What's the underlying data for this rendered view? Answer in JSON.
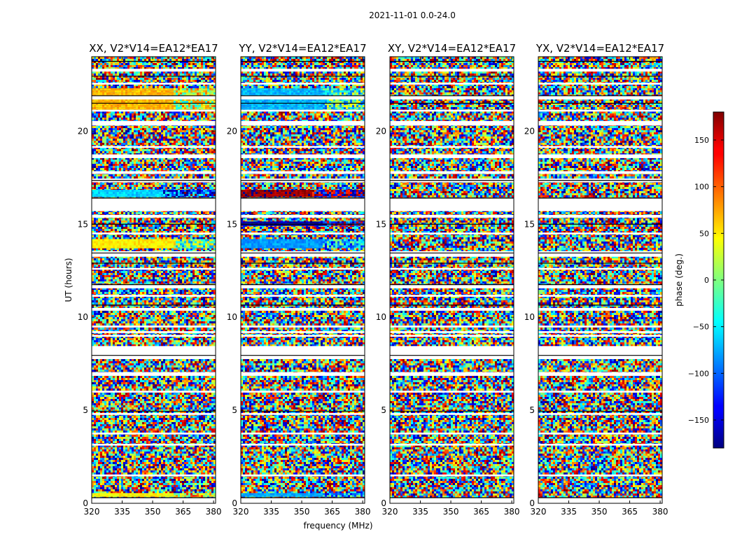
{
  "figure": {
    "suptitle": "2021-11-01 0.0-24.0"
  },
  "colors": {
    "colormap": "jet",
    "frame": "#000000",
    "gap": "#ffffff"
  },
  "chart_data": {
    "type": "heatmap",
    "xlabel": "frequency (MHz)",
    "ylabel": "UT (hours)",
    "xlim": [
      320,
      381
    ],
    "ylim": [
      0,
      24
    ],
    "xticks": [
      320,
      335,
      350,
      365,
      380
    ],
    "yticks": [
      0,
      5,
      10,
      15,
      20
    ],
    "colorbar": {
      "label": "phase (deg.)",
      "range": [
        -180,
        180
      ],
      "ticks": [
        150,
        100,
        50,
        0,
        -50,
        -100,
        -150
      ]
    },
    "panels": [
      {
        "title": "XX, V2*V14=EA12*EA17",
        "coherent_bands": [
          {
            "ut": [
              21.1,
              22.3
            ],
            "phase_low": 70,
            "phase_high": 30,
            "change_mhz": 360
          },
          {
            "ut": [
              16.45,
              16.85
            ],
            "phase_low": -60,
            "phase_high": -110,
            "change_mhz": 355
          },
          {
            "ut": [
              13.7,
              14.2
            ],
            "phase_low": 50,
            "phase_high": -10,
            "change_mhz": 360
          },
          {
            "ut": [
              0.35,
              0.55
            ],
            "phase_low": 45,
            "phase_high": 55,
            "change_mhz": 360
          }
        ]
      },
      {
        "title": "YY, V2*V14=EA12*EA17",
        "coherent_bands": [
          {
            "ut": [
              21.1,
              22.3
            ],
            "phase_low": -70,
            "phase_high": -30,
            "change_mhz": 360
          },
          {
            "ut": [
              16.45,
              16.85
            ],
            "phase_low": 170,
            "phase_high": -175,
            "change_mhz": 355
          },
          {
            "ut": [
              14.9,
              15.15
            ],
            "phase_low": -165,
            "phase_high": -150,
            "change_mhz": 360
          },
          {
            "ut": [
              13.7,
              14.2
            ],
            "phase_low": -80,
            "phase_high": -60,
            "change_mhz": 360
          },
          {
            "ut": [
              0.35,
              0.55
            ],
            "phase_low": -75,
            "phase_high": -70,
            "change_mhz": 360
          }
        ]
      },
      {
        "title": "XY, V2*V14=EA12*EA17",
        "coherent_bands": []
      },
      {
        "title": "YX, V2*V14=EA12*EA17",
        "coherent_bands": []
      }
    ],
    "data_gaps_ut": [
      [
        23.2,
        23.35
      ],
      [
        22.5,
        22.6
      ],
      [
        21.7,
        21.9
      ],
      [
        21.05,
        21.15
      ],
      [
        20.3,
        20.55
      ],
      [
        19.1,
        19.2
      ],
      [
        18.55,
        18.75
      ],
      [
        17.7,
        17.85
      ],
      [
        17.25,
        17.45
      ],
      [
        15.7,
        16.4
      ],
      [
        15.35,
        15.5
      ],
      [
        14.45,
        14.55
      ],
      [
        13.25,
        13.55
      ],
      [
        12.55,
        12.65
      ],
      [
        11.55,
        11.75
      ],
      [
        11.1,
        11.2
      ],
      [
        10.35,
        10.5
      ],
      [
        9.45,
        9.55
      ],
      [
        9.15,
        9.25
      ],
      [
        8.95,
        9.05
      ],
      [
        7.75,
        8.45
      ],
      [
        6.85,
        7.05
      ],
      [
        5.95,
        6.05
      ],
      [
        4.75,
        4.85
      ],
      [
        3.7,
        3.8
      ],
      [
        3.1,
        3.2
      ],
      [
        1.45,
        1.55
      ],
      [
        0.0,
        0.3
      ]
    ],
    "solid_lines_ut": [
      23.75,
      22.95,
      21.9,
      21.5,
      17.35,
      16.4,
      15.0,
      13.45,
      12.9,
      11.75,
      10.65,
      7.95,
      4.95,
      0.3
    ]
  }
}
